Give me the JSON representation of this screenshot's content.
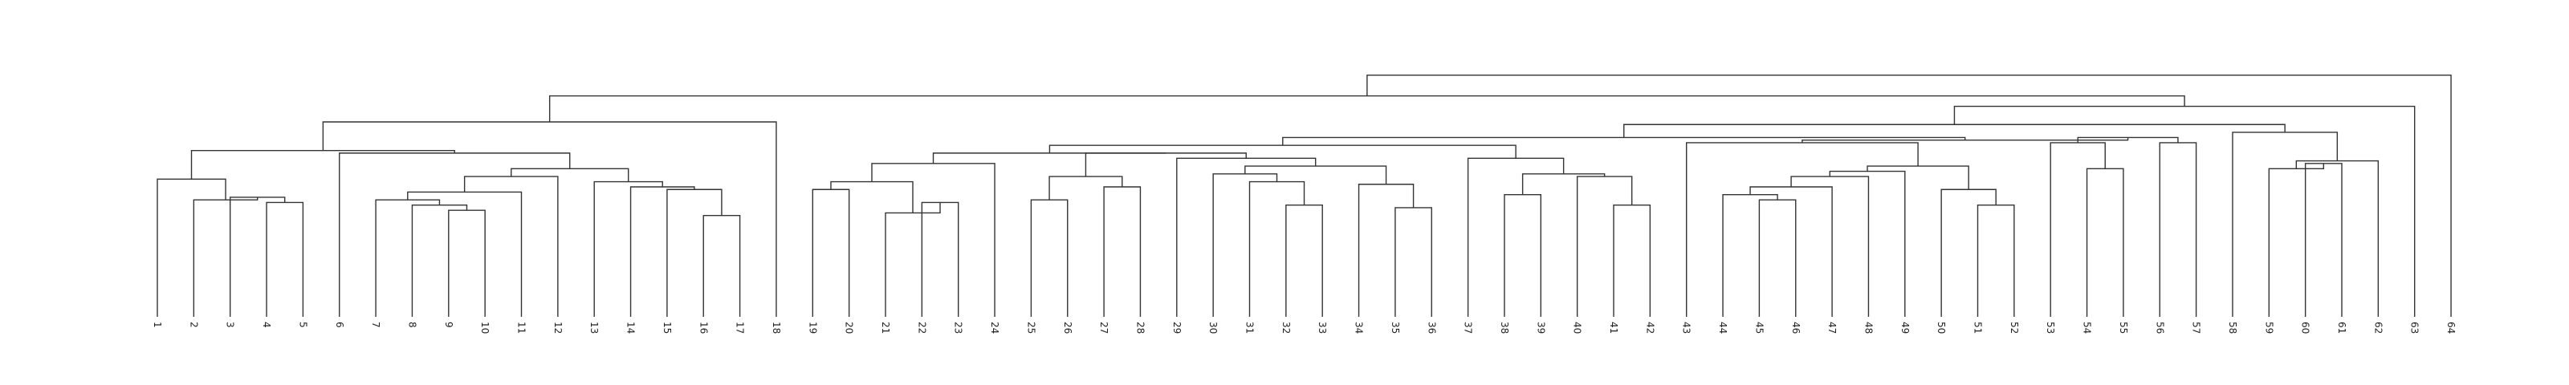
{
  "chart_data": {
    "type": "dendrogram",
    "title": "",
    "xlabel": "",
    "ylabel": "",
    "grid": false,
    "ylim": [
      0,
      100
    ],
    "leaves": [
      "1",
      "2",
      "3",
      "4",
      "5",
      "6",
      "7",
      "8",
      "9",
      "10",
      "11",
      "12",
      "13",
      "14",
      "15",
      "16",
      "17",
      "18",
      "19",
      "20",
      "21",
      "22",
      "23",
      "24",
      "25",
      "26",
      "27",
      "28",
      "29",
      "30",
      "31",
      "32",
      "33",
      "34",
      "35",
      "36",
      "37",
      "38",
      "39",
      "40",
      "41",
      "42",
      "43",
      "44",
      "45",
      "46",
      "47",
      "48",
      "49",
      "50",
      "51",
      "52",
      "53",
      "54",
      "55",
      "56",
      "57",
      "58",
      "59",
      "60",
      "61",
      "62",
      "63",
      "64"
    ],
    "merges": [
      {
        "left": "L4",
        "right": "L5",
        "height": 44
      },
      {
        "left": "L3",
        "right": "m1",
        "height": 46
      },
      {
        "left": "L2",
        "right": "m2",
        "height": 45
      },
      {
        "left": "L1",
        "right": "m3",
        "height": 53
      },
      {
        "left": "L9",
        "right": "L10",
        "height": 41
      },
      {
        "left": "L8",
        "right": "m5",
        "height": 43
      },
      {
        "left": "L7",
        "right": "m6",
        "height": 45
      },
      {
        "left": "L11",
        "right": "m7",
        "height": 48
      },
      {
        "left": "L12",
        "right": "m8",
        "height": 54
      },
      {
        "left": "L16",
        "right": "L17",
        "height": 39
      },
      {
        "left": "L15",
        "right": "m10",
        "height": 49
      },
      {
        "left": "L14",
        "right": "m11",
        "height": 50
      },
      {
        "left": "L13",
        "right": "m12",
        "height": 52
      },
      {
        "left": "m9",
        "right": "m13",
        "height": 57
      },
      {
        "left": "L6",
        "right": "m14",
        "height": 63
      },
      {
        "left": "m4",
        "right": "m15",
        "height": 64
      },
      {
        "left": "L18",
        "right": "m16",
        "height": 75
      },
      {
        "left": "L19",
        "right": "L20",
        "height": 49
      },
      {
        "left": "L22",
        "right": "L23",
        "height": 44
      },
      {
        "left": "L21",
        "right": "m19",
        "height": 40
      },
      {
        "left": "m18",
        "right": "m20",
        "height": 52
      },
      {
        "left": "L24",
        "right": "m21",
        "height": 59
      },
      {
        "left": "L25",
        "right": "L26",
        "height": 45
      },
      {
        "left": "L27",
        "right": "L28",
        "height": 50
      },
      {
        "left": "m23",
        "right": "m24",
        "height": 54
      },
      {
        "left": "L32",
        "right": "L33",
        "height": 43
      },
      {
        "left": "L31",
        "right": "m26",
        "height": 52
      },
      {
        "left": "L30",
        "right": "m27",
        "height": 55
      },
      {
        "left": "L35",
        "right": "L36",
        "height": 42
      },
      {
        "left": "L34",
        "right": "m29",
        "height": 51
      },
      {
        "left": "m28",
        "right": "m30",
        "height": 58
      },
      {
        "left": "L29",
        "right": "m31",
        "height": 61
      },
      {
        "left": "m25",
        "right": "m32",
        "height": 63
      },
      {
        "left": "m22",
        "right": "m33",
        "height": 63
      },
      {
        "left": "L38",
        "right": "L39",
        "height": 47
      },
      {
        "left": "L41",
        "right": "L42",
        "height": 43
      },
      {
        "left": "L40",
        "right": "m36",
        "height": 54
      },
      {
        "left": "m35",
        "right": "m37",
        "height": 55
      },
      {
        "left": "L37",
        "right": "m38",
        "height": 61
      },
      {
        "left": "m34",
        "right": "m39",
        "height": 66
      },
      {
        "left": "L45",
        "right": "L46",
        "height": 45
      },
      {
        "left": "L44",
        "right": "m41",
        "height": 47
      },
      {
        "left": "L47",
        "right": "m42",
        "height": 50
      },
      {
        "left": "L48",
        "right": "m43",
        "height": 54
      },
      {
        "left": "L49",
        "right": "m44",
        "height": 56
      },
      {
        "left": "L51",
        "right": "L52",
        "height": 43
      },
      {
        "left": "L50",
        "right": "m46",
        "height": 49
      },
      {
        "left": "m45",
        "right": "m47",
        "height": 58
      },
      {
        "left": "L43",
        "right": "m48",
        "height": 67
      },
      {
        "left": "L54",
        "right": "L55",
        "height": 57
      },
      {
        "left": "L53",
        "right": "m50",
        "height": 67
      },
      {
        "left": "L56",
        "right": "L57",
        "height": 67
      },
      {
        "left": "m51",
        "right": "m52",
        "height": 69
      },
      {
        "left": "m49",
        "right": "m53",
        "height": 68
      },
      {
        "left": "m40",
        "right": "m54",
        "height": 69
      },
      {
        "left": "L60",
        "right": "L61",
        "height": 59
      },
      {
        "left": "L59",
        "right": "m56",
        "height": 57
      },
      {
        "left": "L62",
        "right": "m57",
        "height": 60
      },
      {
        "left": "L58",
        "right": "m58",
        "height": 71
      },
      {
        "left": "m55",
        "right": "m59",
        "height": 74
      },
      {
        "left": "m60",
        "right": "L63",
        "height": 81
      },
      {
        "left": "m17",
        "right": "m61",
        "height": 85
      },
      {
        "left": "m62",
        "right": "L64",
        "height": 93
      }
    ]
  }
}
